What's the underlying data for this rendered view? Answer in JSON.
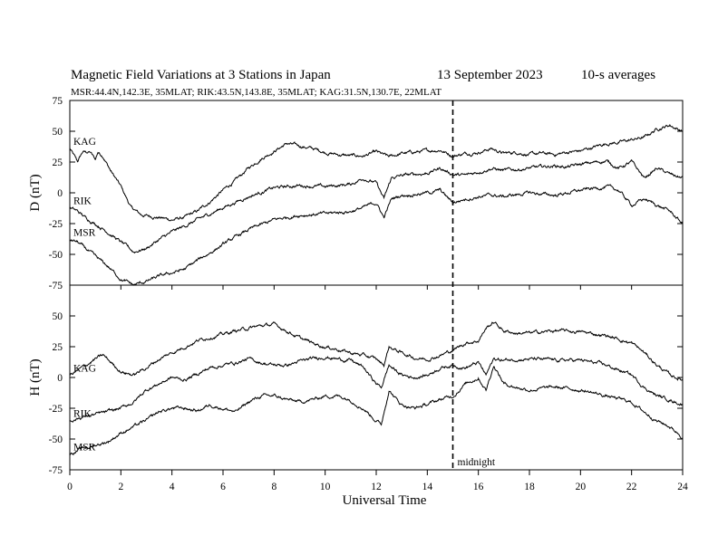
{
  "header": {
    "title": "Magnetic Field Variations at 3 Stations in Japan",
    "date": "13 September 2023",
    "averaging": "10-s averages",
    "stations_line": "MSR:44.4N,142.3E, 35MLAT;   RIK:43.5N,143.8E, 35MLAT;   KAG:31.5N,130.7E, 22MLAT"
  },
  "chart_data": {
    "type": "line",
    "xlabel": "Universal Time",
    "x_range": [
      0,
      24
    ],
    "x_ticks": [
      "0",
      "2",
      "4",
      "6",
      "8",
      "10",
      "12",
      "14",
      "16",
      "18",
      "20",
      "22",
      "24"
    ],
    "midnight_marker": {
      "x": 15,
      "label": "midnight"
    },
    "panels": [
      {
        "id": "D",
        "ylabel": "D (nT)",
        "ylim": [
          -75,
          75
        ],
        "y_ticks": [
          "75",
          "50",
          "25",
          "0",
          "-25",
          "-50",
          "-75"
        ],
        "series": [
          {
            "name": "KAG",
            "x": [
              0,
              0.3,
              0.5,
              0.8,
              1.0,
              1.1,
              1.3,
              1.6,
              2.0,
              2.4,
              2.8,
              3.5,
              4.0,
              4.5,
              5.0,
              5.5,
              6.0,
              6.5,
              7.0,
              7.5,
              8.0,
              8.5,
              9.0,
              9.5,
              10.0,
              10.5,
              11.0,
              11.5,
              12.0,
              12.5,
              13.0,
              13.5,
              14.0,
              14.5,
              15.0,
              15.5,
              16.0,
              16.5,
              17.0,
              17.5,
              18.0,
              18.5,
              19.0,
              19.5,
              20.0,
              20.5,
              21.0,
              21.5,
              22.0,
              22.5,
              23.0,
              23.5,
              24.0
            ],
            "values": [
              36,
              25,
              33,
              33,
              27,
              33,
              30,
              18,
              5,
              -12,
              -18,
              -20,
              -22,
              -20,
              -15,
              -7,
              2,
              10,
              20,
              28,
              34,
              40,
              38,
              36,
              33,
              31,
              30,
              30,
              33,
              29,
              32,
              33,
              34,
              35,
              30,
              32,
              33,
              36,
              32,
              33,
              31,
              32,
              31,
              33,
              34,
              37,
              40,
              41,
              43,
              45,
              52,
              55,
              50
            ]
          },
          {
            "name": "RIK",
            "x": [
              0,
              0.3,
              0.6,
              1.0,
              1.5,
              2.0,
              2.5,
              3.0,
              3.5,
              4.0,
              5.0,
              6.0,
              7.0,
              8.0,
              9.0,
              10.0,
              11.0,
              11.5,
              12.0,
              12.3,
              12.6,
              13.0,
              14.0,
              14.5,
              15.0,
              15.5,
              16.0,
              16.5,
              17.0,
              18.0,
              19.0,
              19.5,
              20.0,
              21.0,
              21.5,
              22.0,
              22.5,
              23.0,
              23.5,
              24.0
            ],
            "values": [
              -12,
              -15,
              -20,
              -25,
              -32,
              -40,
              -48,
              -45,
              -38,
              -32,
              -22,
              -12,
              -3,
              4,
              6,
              5,
              7,
              12,
              8,
              -5,
              12,
              14,
              16,
              20,
              15,
              14,
              17,
              20,
              18,
              20,
              22,
              21,
              23,
              26,
              20,
              25,
              12,
              20,
              15,
              12
            ]
          },
          {
            "name": "MSR",
            "x": [
              0,
              0.3,
              0.6,
              1.0,
              1.5,
              2.0,
              2.5,
              3.0,
              3.5,
              4.0,
              4.5,
              5.0,
              6.0,
              7.0,
              8.0,
              9.0,
              10.0,
              11.0,
              11.5,
              12.0,
              12.3,
              12.6,
              13.0,
              14.0,
              14.5,
              15.0,
              15.5,
              16.0,
              16.5,
              17.0,
              18.0,
              19.0,
              20.0,
              21.0,
              21.5,
              22.0,
              22.5,
              23.0,
              23.5,
              24.0
            ],
            "values": [
              -38,
              -40,
              -45,
              -52,
              -60,
              -70,
              -75,
              -72,
              -68,
              -65,
              -62,
              -55,
              -42,
              -30,
              -22,
              -18,
              -17,
              -15,
              -12,
              -8,
              -20,
              -5,
              -2,
              0,
              2,
              -8,
              -5,
              -3,
              -2,
              -3,
              0,
              -2,
              2,
              5,
              2,
              -10,
              -5,
              -10,
              -15,
              -25
            ]
          }
        ]
      },
      {
        "id": "H",
        "ylabel": "H (nT)",
        "ylim": [
          -75,
          75
        ],
        "y_ticks": [
          "75",
          "50",
          "25",
          "0",
          "-25",
          "-50",
          "-75"
        ],
        "series": [
          {
            "name": "KAG",
            "x": [
              0,
              0.5,
              1.0,
              1.3,
              2.0,
              2.5,
              3.0,
              3.5,
              4.0,
              4.5,
              5.0,
              5.5,
              6.0,
              6.5,
              7.0,
              7.5,
              8.0,
              8.5,
              9.0,
              9.5,
              10.0,
              10.5,
              11.0,
              11.5,
              12.0,
              12.3,
              12.5,
              12.8,
              13.0,
              13.5,
              14.0,
              14.5,
              15.0,
              15.5,
              16.0,
              16.3,
              16.6,
              17.0,
              17.5,
              18.0,
              19.0,
              20.0,
              21.0,
              22.0,
              22.5,
              23.0,
              23.5,
              24.0
            ],
            "values": [
              2,
              8,
              15,
              18,
              5,
              2,
              8,
              15,
              20,
              25,
              30,
              33,
              35,
              38,
              40,
              42,
              43,
              38,
              32,
              28,
              25,
              23,
              20,
              18,
              15,
              10,
              25,
              22,
              20,
              16,
              15,
              18,
              22,
              28,
              30,
              40,
              45,
              38,
              36,
              36,
              38,
              37,
              34,
              28,
              20,
              10,
              2,
              -2
            ]
          },
          {
            "name": "RIK",
            "x": [
              0,
              0.5,
              1.0,
              1.5,
              2.0,
              2.5,
              3.0,
              3.5,
              4.0,
              4.5,
              5.0,
              5.5,
              6.0,
              6.5,
              7.0,
              7.5,
              8.0,
              8.5,
              9.0,
              9.5,
              10.0,
              10.5,
              11.0,
              11.5,
              12.0,
              12.2,
              12.5,
              12.8,
              13.0,
              13.5,
              14.0,
              14.5,
              15.0,
              15.5,
              16.0,
              16.3,
              16.6,
              17.0,
              17.5,
              18.0,
              19.0,
              20.0,
              21.0,
              22.0,
              22.5,
              23.0,
              23.5,
              24.0
            ],
            "values": [
              -35,
              -32,
              -30,
              -28,
              -25,
              -20,
              -10,
              -5,
              0,
              -2,
              3,
              8,
              10,
              12,
              15,
              12,
              10,
              10,
              13,
              15,
              17,
              15,
              14,
              8,
              -5,
              -8,
              10,
              5,
              2,
              0,
              2,
              8,
              10,
              8,
              12,
              2,
              15,
              14,
              15,
              15,
              14,
              14,
              10,
              2,
              -8,
              -15,
              -18,
              -22
            ]
          },
          {
            "name": "MSR",
            "x": [
              0,
              0.5,
              1.0,
              1.5,
              2.0,
              2.5,
              3.0,
              3.5,
              4.0,
              4.5,
              5.0,
              5.5,
              6.0,
              6.5,
              7.0,
              7.5,
              8.0,
              8.5,
              9.0,
              9.5,
              10.0,
              10.5,
              11.0,
              11.5,
              12.0,
              12.2,
              12.5,
              12.8,
              13.0,
              13.5,
              14.0,
              14.5,
              15.0,
              15.5,
              16.0,
              16.3,
              16.6,
              17.0,
              17.5,
              18.0,
              19.0,
              20.0,
              21.0,
              22.0,
              22.5,
              23.0,
              23.5,
              24.0
            ],
            "values": [
              -62,
              -58,
              -55,
              -52,
              -45,
              -40,
              -35,
              -28,
              -25,
              -25,
              -27,
              -22,
              -25,
              -28,
              -20,
              -15,
              -15,
              -18,
              -20,
              -18,
              -15,
              -15,
              -18,
              -25,
              -35,
              -38,
              -10,
              -18,
              -22,
              -25,
              -22,
              -18,
              -15,
              -5,
              0,
              -10,
              10,
              -5,
              -8,
              -10,
              -8,
              -10,
              -15,
              -20,
              -28,
              -35,
              -40,
              -48
            ]
          }
        ]
      }
    ]
  }
}
